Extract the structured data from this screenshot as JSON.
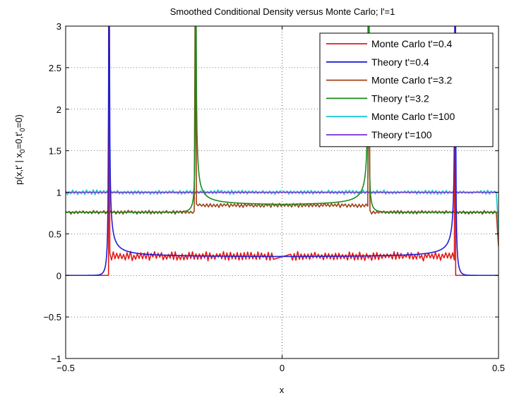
{
  "chart_data": {
    "type": "line",
    "title": "Smoothed Conditional Density versus Monte Carlo;  l'=1",
    "xlabel": "x",
    "ylabel": "p(x,t' | x_0=0,t'_0=0)",
    "ylabel_parts": {
      "a": "p(x,t' | x",
      "sub1": "0",
      "b": "=0,t'",
      "sub2": "0",
      "c": "=0)"
    },
    "xlim": [
      -0.5,
      0.5
    ],
    "ylim": [
      -1,
      3
    ],
    "xticks": [
      -0.5,
      0,
      0.5
    ],
    "xtick_labels": [
      "−0.5",
      "0",
      "0.5"
    ],
    "yticks": [
      -1,
      -0.5,
      0,
      0.5,
      1,
      1.5,
      2,
      2.5,
      3
    ],
    "ytick_labels": [
      "−1",
      "−0.5",
      "0",
      "0.5",
      "1",
      "1.5",
      "2",
      "2.5",
      "3"
    ],
    "grid": true,
    "legend_position": "top-right",
    "series": [
      {
        "name": "Monte Carlo t'=0.4",
        "color": "#e41a1a",
        "kind": "noisy",
        "segments": [
          {
            "x0": -0.5,
            "x1": -0.401,
            "level": 0.0,
            "amp": 0.0
          },
          {
            "x0": -0.398,
            "x1": -0.02,
            "level": 0.23,
            "amp": 0.06
          },
          {
            "x0": 0.02,
            "x1": 0.398,
            "level": 0.23,
            "amp": 0.06
          },
          {
            "x0": 0.401,
            "x1": 0.5,
            "level": 0.0,
            "amp": 0.0
          }
        ],
        "spikes": [
          {
            "x": -0.4,
            "peak": 3.0
          },
          {
            "x": 0.4,
            "peak": 3.0
          }
        ]
      },
      {
        "name": "Theory t'=0.4",
        "color": "#1f1fd6",
        "kind": "theory",
        "base": 0.22,
        "edges": [
          -0.4,
          0.4
        ],
        "outside": 0.0,
        "peak": 3.0
      },
      {
        "name": "Monte Carlo t'=3.2",
        "color": "#a0421a",
        "kind": "noisy",
        "segments": [
          {
            "x0": -0.5,
            "x1": -0.203,
            "level": 0.76,
            "amp": 0.025
          },
          {
            "x0": -0.198,
            "x1": 0.198,
            "level": 0.845,
            "amp": 0.03
          },
          {
            "x0": 0.203,
            "x1": 0.495,
            "level": 0.76,
            "amp": 0.025
          }
        ],
        "spikes": [
          {
            "x": -0.2,
            "peak": 3.0
          },
          {
            "x": 0.2,
            "peak": 3.0
          }
        ],
        "tail": {
          "x": 0.5,
          "y": 0.35
        }
      },
      {
        "name": "Theory t'=3.2",
        "color": "#1a8a1a",
        "kind": "theory",
        "base": 0.84,
        "edges": [
          -0.2,
          0.2
        ],
        "outside": 0.76,
        "peak": 3.0
      },
      {
        "name": "Monte Carlo t'=100",
        "color": "#19c9d0",
        "kind": "noisy",
        "segments": [
          {
            "x0": -0.5,
            "x1": 0.495,
            "level": 1.0,
            "amp": 0.03
          }
        ],
        "spikes": [],
        "tail": {
          "x": 0.5,
          "y": 0.55
        }
      },
      {
        "name": "Theory t'=100",
        "color": "#7a2fd0",
        "kind": "flat",
        "level": 1.0
      }
    ]
  }
}
